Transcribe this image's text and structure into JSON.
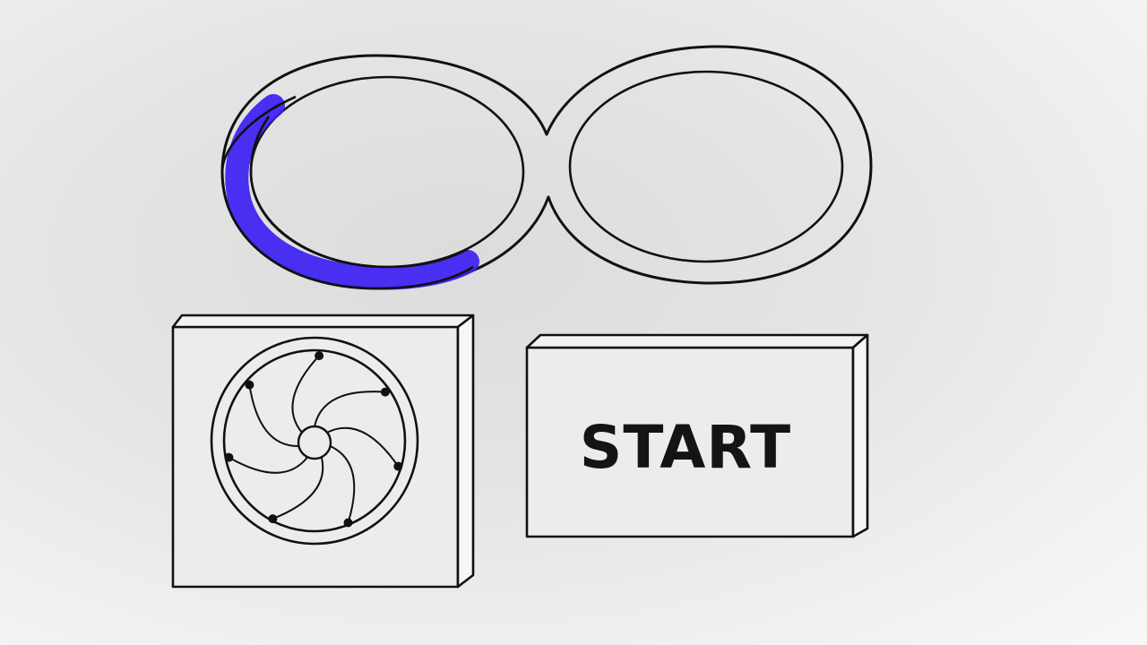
{
  "game": {
    "start_button": {
      "label": "START"
    },
    "progress_ring": {
      "fraction": 0.3,
      "color": "#3b1ff2"
    },
    "fan": {
      "blade_count": 7
    }
  },
  "colors": {
    "outline": "#111111",
    "background": "#e6e6e6",
    "progress": "#3b1ff2"
  }
}
